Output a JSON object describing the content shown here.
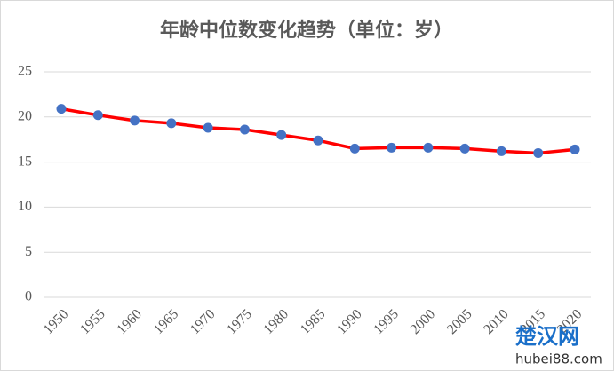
{
  "chart_data": {
    "type": "line",
    "title": "年龄中位数变化趋势（单位：岁）",
    "categories": [
      "1950",
      "1955",
      "1960",
      "1965",
      "1970",
      "1975",
      "1980",
      "1985",
      "1990",
      "1995",
      "2000",
      "2005",
      "2010",
      "2015",
      "2020"
    ],
    "values": [
      20.9,
      20.2,
      19.6,
      19.3,
      18.8,
      18.6,
      18.0,
      17.4,
      16.5,
      16.6,
      16.6,
      16.5,
      16.2,
      16.0,
      16.4
    ],
    "color": "#ff0000",
    "marker_color": "#4472c4",
    "ylim": [
      0,
      25
    ],
    "yticks": [
      0,
      5,
      10,
      15,
      20,
      25
    ],
    "grid": true,
    "watermark": [
      "楚汉网",
      "hubei88.com"
    ]
  }
}
